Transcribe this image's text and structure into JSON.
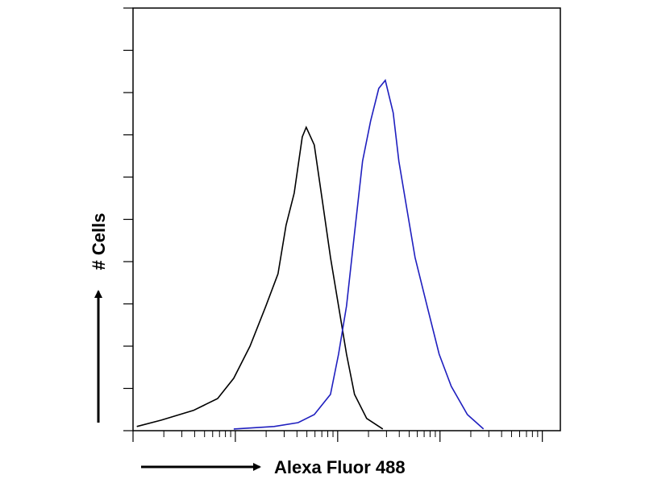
{
  "chart_data": {
    "type": "line",
    "x_label": "Alexa Fluor 488",
    "y_label": "# Cells",
    "xlog": true,
    "xlim": [
      1,
      15000
    ],
    "xticks": [
      1,
      10,
      100,
      1000,
      10000
    ],
    "ylim": [
      0,
      10
    ],
    "yticks": [
      0,
      1,
      2,
      3,
      4,
      5,
      6,
      7,
      8,
      9,
      10
    ],
    "series": [
      {
        "color": "#000000",
        "x": [
          1.09,
          1.89,
          3.9,
          6.71,
          9.64,
          13.9,
          19.9,
          26.1,
          31.3,
          37.6,
          45.1,
          49.3,
          59.1,
          70.9,
          85.0,
          102,
          122,
          146,
          192,
          276
        ],
        "values": [
          0.1,
          0.25,
          0.48,
          0.76,
          1.24,
          2.0,
          2.95,
          3.71,
          4.86,
          5.62,
          6.95,
          7.18,
          6.76,
          5.43,
          4.1,
          2.95,
          1.81,
          0.86,
          0.29,
          0.04
        ]
      },
      {
        "color": "#1f1fbf",
        "x": [
          9.64,
          23.9,
          41.1,
          59.1,
          85.0,
          102,
          122,
          146,
          175,
          210,
          252,
          292,
          349,
          396,
          475,
          570,
          748,
          982,
          1288,
          1853,
          2661
        ],
        "values": [
          0.04,
          0.1,
          0.19,
          0.38,
          0.86,
          1.81,
          2.95,
          4.67,
          6.38,
          7.33,
          8.1,
          8.29,
          7.52,
          6.38,
          5.24,
          4.1,
          2.95,
          1.81,
          1.05,
          0.38,
          0.04
        ]
      }
    ]
  }
}
